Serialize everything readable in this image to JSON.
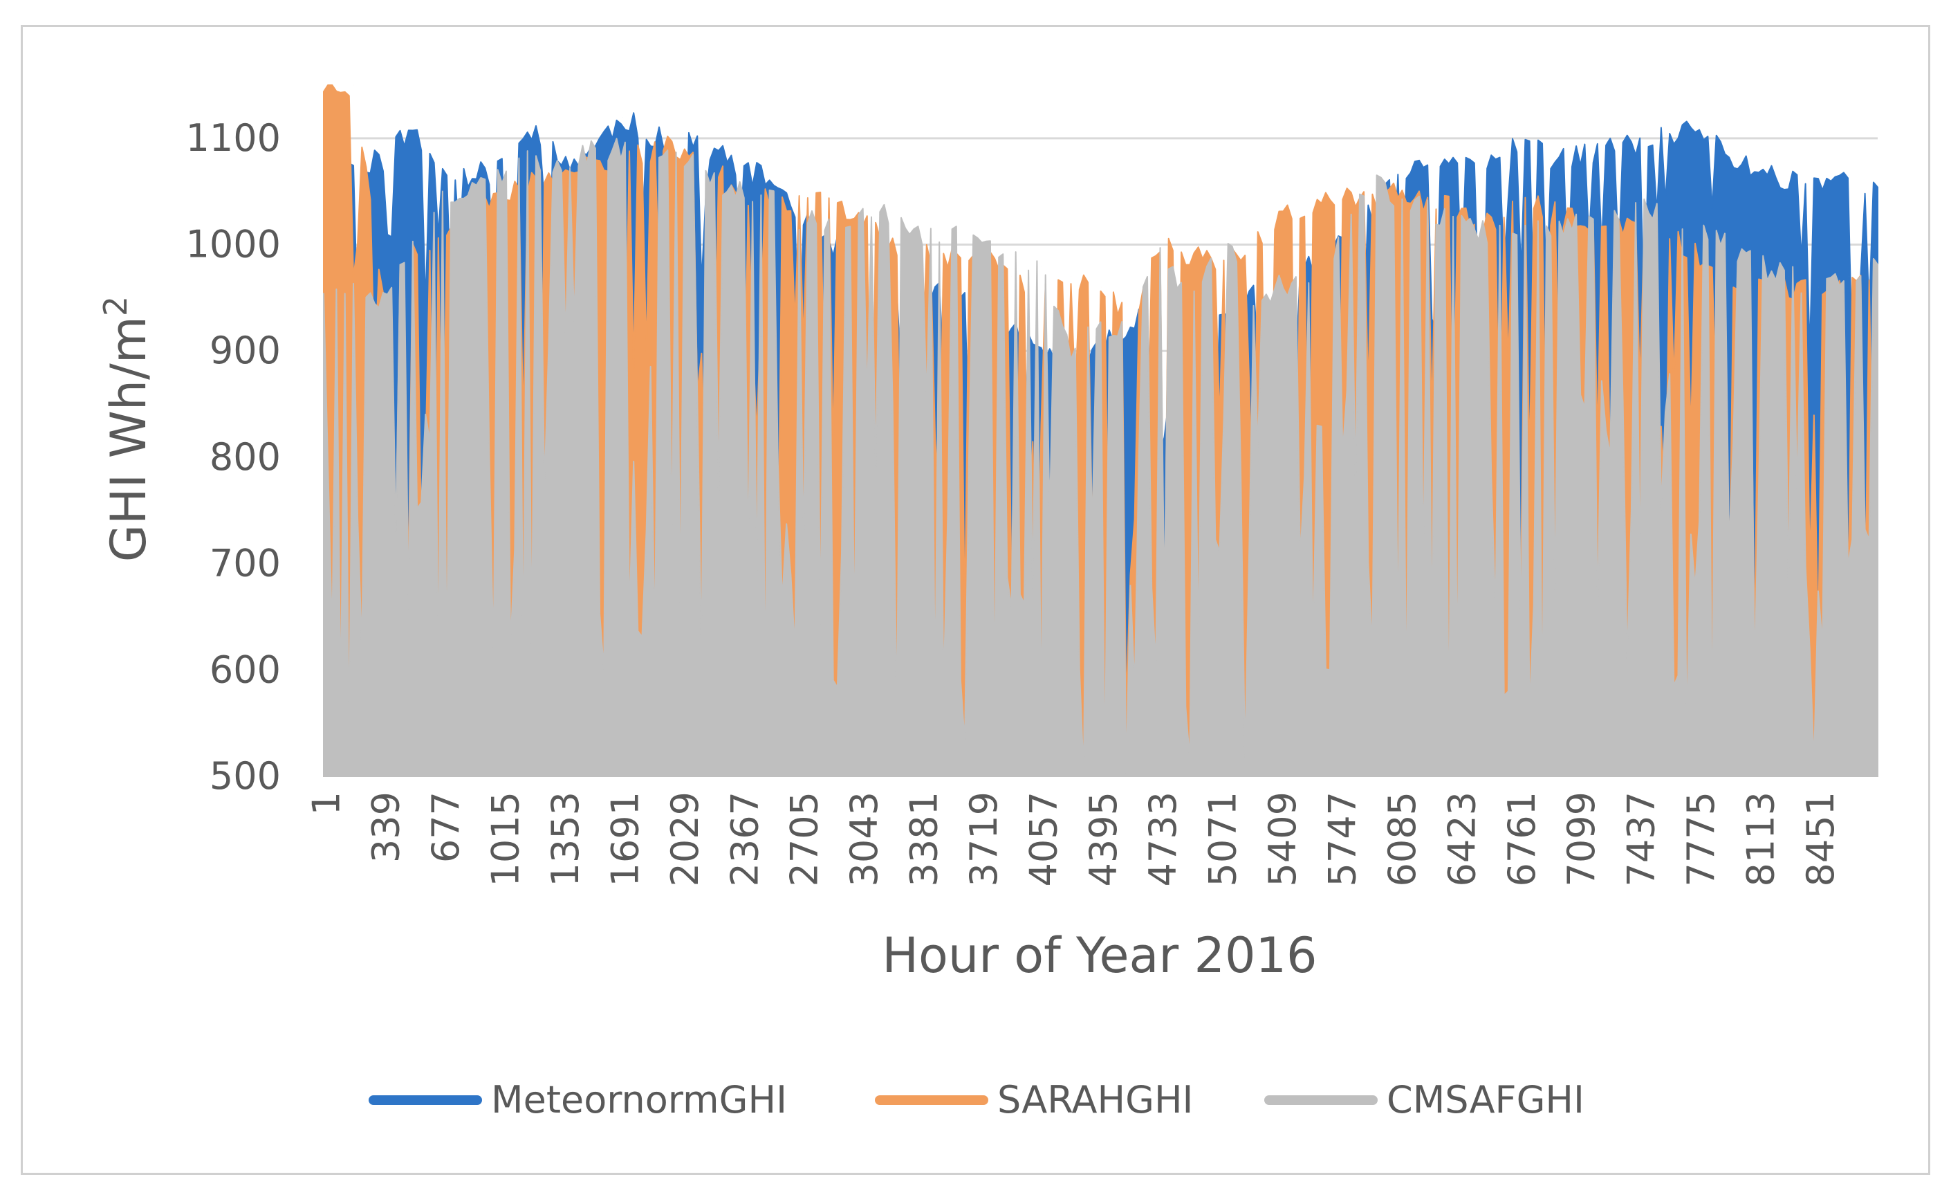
{
  "chart_data": {
    "type": "area",
    "title": "",
    "xlabel": "Hour of Year 2016",
    "ylabel": "GHI Wh/m",
    "ylabel_superscript": "2",
    "ylim": [
      500,
      1150
    ],
    "yticks": [
      500,
      600,
      700,
      800,
      900,
      1000,
      1100
    ],
    "xlim": [
      1,
      8784
    ],
    "x_tick_labels": [
      "1",
      "339",
      "677",
      "1015",
      "1353",
      "1691",
      "2029",
      "2367",
      "2705",
      "3043",
      "3381",
      "3719",
      "4057",
      "4395",
      "4733",
      "5071",
      "5409",
      "5747",
      "6085",
      "6423",
      "6761",
      "7099",
      "7437",
      "7775",
      "8113",
      "8451"
    ],
    "grid": "horizontal",
    "legend_position": "bottom",
    "series": [
      {
        "name": "MeteornormGHI",
        "color": "#2E75C7",
        "x": [
          1,
          169,
          339,
          508,
          677,
          846,
          1015,
          1184,
          1353,
          1522,
          1691,
          1860,
          2029,
          2198,
          2367,
          2536,
          2705,
          2874,
          3043,
          3212,
          3381,
          3550,
          3719,
          3888,
          4057,
          4226,
          4395,
          4564,
          4733,
          4902,
          5071,
          5240,
          5409,
          5578,
          5747,
          5916,
          6085,
          6254,
          6423,
          6592,
          6761,
          6930,
          7099,
          7268,
          7437,
          7606,
          7775,
          7944,
          8113,
          8282,
          8451,
          8620,
          8784
        ],
        "values": [
          1060,
          1075,
          1080,
          1110,
          1070,
          1065,
          1070,
          1110,
          1075,
          1090,
          1120,
          1100,
          1105,
          1090,
          1070,
          1060,
          1030,
          1000,
          980,
          960,
          950,
          960,
          930,
          920,
          900,
          880,
          900,
          930,
          920,
          900,
          930,
          950,
          960,
          980,
          1000,
          1030,
          1060,
          1075,
          1085,
          1080,
          1100,
          1080,
          1085,
          1090,
          1095,
          1100,
          1110,
          1080,
          1070,
          1060,
          1060,
          1065,
          1050
        ]
      },
      {
        "name": "SARAHGHI",
        "color": "#F29D5B",
        "x": [
          1,
          169,
          339,
          508,
          677,
          846,
          1015,
          1184,
          1353,
          1522,
          1691,
          1860,
          2029,
          2198,
          2367,
          2536,
          2705,
          2874,
          3043,
          3212,
          3381,
          3550,
          3719,
          3888,
          4057,
          4226,
          4395,
          4564,
          4733,
          4902,
          5071,
          5240,
          5409,
          5578,
          5747,
          5916,
          6085,
          6254,
          6423,
          6592,
          6761,
          6930,
          7099,
          7268,
          7437,
          7606,
          7775,
          7944,
          8113,
          8282,
          8451,
          8620,
          8784
        ],
        "values": [
          1150,
          1150,
          950,
          1000,
          1010,
          1040,
          1050,
          1060,
          1060,
          1080,
          1080,
          1090,
          1090,
          1080,
          1050,
          1040,
          1040,
          1040,
          1030,
          1000,
          990,
          990,
          1000,
          970,
          950,
          970,
          960,
          930,
          1000,
          990,
          980,
          1000,
          1030,
          1040,
          1050,
          1040,
          1050,
          1040,
          1030,
          1020,
          1040,
          1030,
          1020,
          1020,
          1010,
          1010,
          990,
          970,
          960,
          960,
          960,
          960,
          960
        ]
      },
      {
        "name": "CMSAFGHI",
        "color": "#BFBFBF",
        "x": [
          1,
          169,
          339,
          508,
          677,
          846,
          1015,
          1184,
          1353,
          1522,
          1691,
          1860,
          2029,
          2198,
          2367,
          2536,
          2705,
          2874,
          3043,
          3212,
          3381,
          3550,
          3719,
          3888,
          4057,
          4226,
          4395,
          4564,
          4733,
          4902,
          5071,
          5240,
          5409,
          5578,
          5747,
          5916,
          6085,
          6254,
          6423,
          6592,
          6761,
          6930,
          7099,
          7268,
          7437,
          7606,
          7775,
          7944,
          8113,
          8282,
          8451,
          8620,
          8784
        ],
        "values": [
          960,
          965,
          950,
          1010,
          1040,
          1060,
          1060,
          1080,
          1070,
          1090,
          1090,
          1090,
          1080,
          1060,
          1050,
          1050,
          1020,
          1020,
          1030,
          1030,
          1010,
          1010,
          1000,
          990,
          980,
          900,
          920,
          930,
          990,
          940,
          1020,
          950,
          960,
          960,
          1000,
          1070,
          1040,
          1030,
          1020,
          1010,
          1020,
          1010,
          1020,
          1030,
          1040,
          1020,
          1010,
          1000,
          980,
          970,
          960,
          970,
          980
        ]
      }
    ]
  }
}
